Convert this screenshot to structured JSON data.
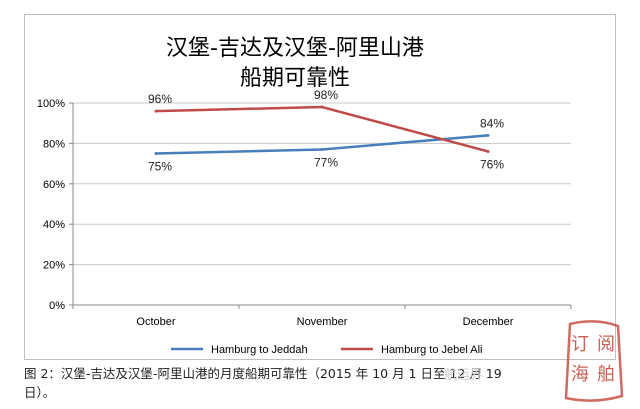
{
  "chart_data": {
    "type": "line",
    "title_lines": [
      "汉堡-吉达及汉堡-阿里山港",
      "船期可靠性"
    ],
    "categories": [
      "October",
      "November",
      "December"
    ],
    "series": [
      {
        "name": "Hamburg to Jeddah",
        "color": "#4a7ebb",
        "values": [
          75,
          77,
          84
        ],
        "labels": [
          "75%",
          "77%",
          "84%"
        ],
        "label_position": [
          "below",
          "below",
          "above"
        ]
      },
      {
        "name": "Hamburg  to Jebel Ali",
        "color": "#be4b48",
        "values": [
          96,
          98,
          76
        ],
        "labels": [
          "96%",
          "98%",
          "76%"
        ],
        "label_position": [
          "above",
          "above",
          "below"
        ]
      }
    ],
    "y_ticks": [
      "0%",
      "20%",
      "40%",
      "60%",
      "80%",
      "100%"
    ],
    "ylim": [
      0,
      100
    ],
    "grid": true,
    "legend_position": "bottom"
  },
  "caption": {
    "line1": "图 2：汉堡-吉达及汉堡-阿里山港的月度船期可靠性（2015 年 10 月 1 日至 12 月 19",
    "line2": "日）。"
  },
  "watermark": {
    "text": "航运界",
    "seal_color": "#c0392b",
    "seal_chars": [
      "订",
      "阅",
      "海",
      "舶"
    ]
  }
}
